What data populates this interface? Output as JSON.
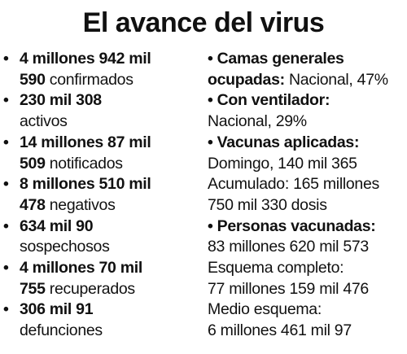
{
  "title": "El avance del virus",
  "bullet": "•",
  "left": [
    {
      "bold": "4 millones 942 mil 590",
      "text": "confirmados",
      "l1": "4 millones 942 mil",
      "l2_bold": "590",
      "l2_text": " confirmados"
    },
    {
      "l1": "230 mil 308",
      "l2_text": "activos"
    },
    {
      "l1": "14 millones 87 mil",
      "l2_bold": "509",
      "l2_text": " notificados"
    },
    {
      "l1": "8 millones 510 mil",
      "l2_bold": "478",
      "l2_text": " negativos"
    },
    {
      "l1": "634 mil 90",
      "l2_text": "sospechosos"
    },
    {
      "l1": "4 millones 70 mil",
      "l2_bold": "755",
      "l2_text": " recuperados"
    },
    {
      "l1": "306 mil 91",
      "l2_text": "defunciones"
    }
  ],
  "right": {
    "camas": {
      "l1": "• Camas generales",
      "l2_bold": "ocupadas:",
      "l2_text": " Nacional, 47%"
    },
    "ventilador": {
      "l1": "• Con ventilador:",
      "l2_text": "Nacional, 29%"
    },
    "vacunas": {
      "l1": "• Vacunas aplicadas:",
      "l2_text": "Domingo, 140 mil 365",
      "l3_text": "Acumulado: 165 millones",
      "l4_text": "750 mil 330 dosis"
    },
    "personas": {
      "l1": "• Personas vacunadas:",
      "l2_text": "83 millones 620 mil 573",
      "l3_text": "Esquema completo:",
      "l4_text": "77 millones 159 mil 476",
      "l5_text": "Medio esquema:",
      "l6_text": "6 millones 461 mil 97"
    }
  }
}
